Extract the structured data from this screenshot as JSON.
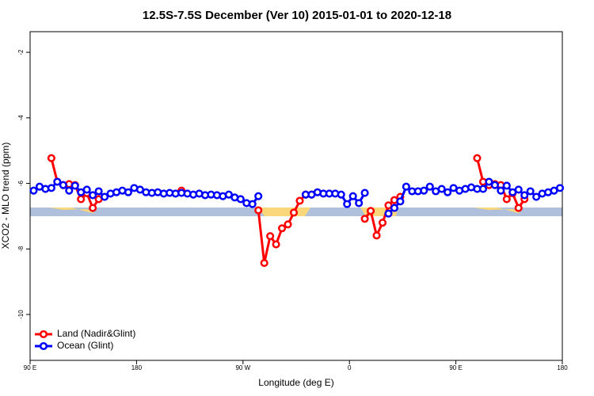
{
  "chart_data": {
    "type": "line",
    "title": "12.5S-7.5S December (Ver 10)   2015-01-01 to 2020-12-18",
    "x_label": "Longitude (deg E)",
    "y_label": "XCO2 - MLO trend (ppm)",
    "x": [
      93,
      98,
      103,
      108,
      113,
      118,
      123,
      128,
      133,
      138,
      143,
      148,
      153,
      158,
      163,
      168,
      173,
      178,
      183,
      188,
      193,
      198,
      203,
      208,
      213,
      218,
      223,
      228,
      233,
      238,
      243,
      248,
      253,
      258,
      263,
      268,
      273,
      278,
      283,
      288,
      293,
      298,
      303,
      308,
      313,
      318,
      323,
      328,
      333,
      338,
      343,
      348,
      353,
      358,
      363,
      368,
      373,
      378,
      383,
      388,
      393,
      398,
      403,
      408,
      413,
      418,
      423,
      428,
      433,
      438,
      443,
      448,
      453,
      458,
      463,
      468,
      473,
      478,
      483,
      488,
      493,
      498,
      503,
      508,
      513,
      518,
      523,
      528,
      533,
      538
    ],
    "series": [
      {
        "name": "Land (Nadir&Glint)",
        "color": "#ff0000",
        "values": [
          null,
          null,
          null,
          -5.23,
          -5.95,
          -6.05,
          -6.02,
          -6.05,
          -6.48,
          -6.3,
          -6.75,
          -6.48,
          null,
          null,
          null,
          null,
          null,
          null,
          null,
          null,
          null,
          null,
          null,
          null,
          null,
          -6.22,
          null,
          null,
          null,
          null,
          null,
          null,
          null,
          null,
          null,
          null,
          null,
          null,
          -6.82,
          -8.43,
          -7.61,
          -7.86,
          -7.37,
          -7.25,
          -6.89,
          -6.53,
          -6.34,
          -6.34,
          null,
          null,
          null,
          null,
          null,
          null,
          null,
          null,
          -7.08,
          -6.84,
          -7.59,
          -7.2,
          -6.67,
          -6.51,
          -6.41,
          null,
          null,
          null,
          null,
          null,
          null,
          null,
          null,
          null,
          null,
          null,
          null,
          -5.23,
          -5.95,
          -6.05,
          -6.02,
          -6.05,
          -6.48,
          -6.3,
          -6.75,
          -6.48,
          null,
          null,
          null,
          null,
          null,
          null
        ]
      },
      {
        "name": "Ocean (Glint)",
        "color": "#0000ff",
        "values": [
          -6.22,
          -6.1,
          -6.17,
          -6.14,
          -5.95,
          -6.05,
          -6.22,
          -6.07,
          -6.27,
          -6.19,
          -6.36,
          -6.24,
          -6.41,
          -6.31,
          -6.27,
          -6.22,
          -6.27,
          -6.14,
          -6.19,
          -6.27,
          -6.29,
          -6.27,
          -6.31,
          -6.29,
          -6.31,
          -6.29,
          -6.31,
          -6.34,
          -6.31,
          -6.36,
          -6.34,
          -6.36,
          -6.39,
          -6.34,
          -6.43,
          -6.48,
          -6.6,
          -6.63,
          -6.39,
          null,
          null,
          null,
          null,
          null,
          null,
          null,
          -6.34,
          -6.34,
          -6.27,
          -6.31,
          -6.31,
          -6.31,
          -6.34,
          -6.63,
          -6.39,
          -6.6,
          -6.29,
          null,
          null,
          null,
          -6.92,
          -6.75,
          -6.55,
          -6.1,
          -6.24,
          -6.24,
          -6.22,
          -6.1,
          -6.24,
          -6.17,
          -6.27,
          -6.14,
          -6.22,
          -6.17,
          -6.12,
          -6.17,
          -6.17,
          -5.95,
          -6.05,
          -6.22,
          -6.07,
          -6.27,
          -6.19,
          -6.36,
          -6.24,
          -6.41,
          -6.31,
          -6.27,
          -6.22,
          -6.14
        ]
      }
    ],
    "xlim": [
      90,
      540
    ],
    "xticks": [
      {
        "value": 90,
        "label": "90 E"
      },
      180,
      {
        "value": 270,
        "label": "90 W"
      },
      {
        "value": 360,
        "label": "0"
      },
      {
        "value": 450,
        "label": "90 E"
      },
      {
        "value": 540,
        "label": "180"
      }
    ],
    "ylim": [
      -11.4,
      -1.37
    ],
    "yticks": [
      -2,
      -4,
      -6,
      -8,
      -10
    ],
    "legend": "bottom-left"
  }
}
